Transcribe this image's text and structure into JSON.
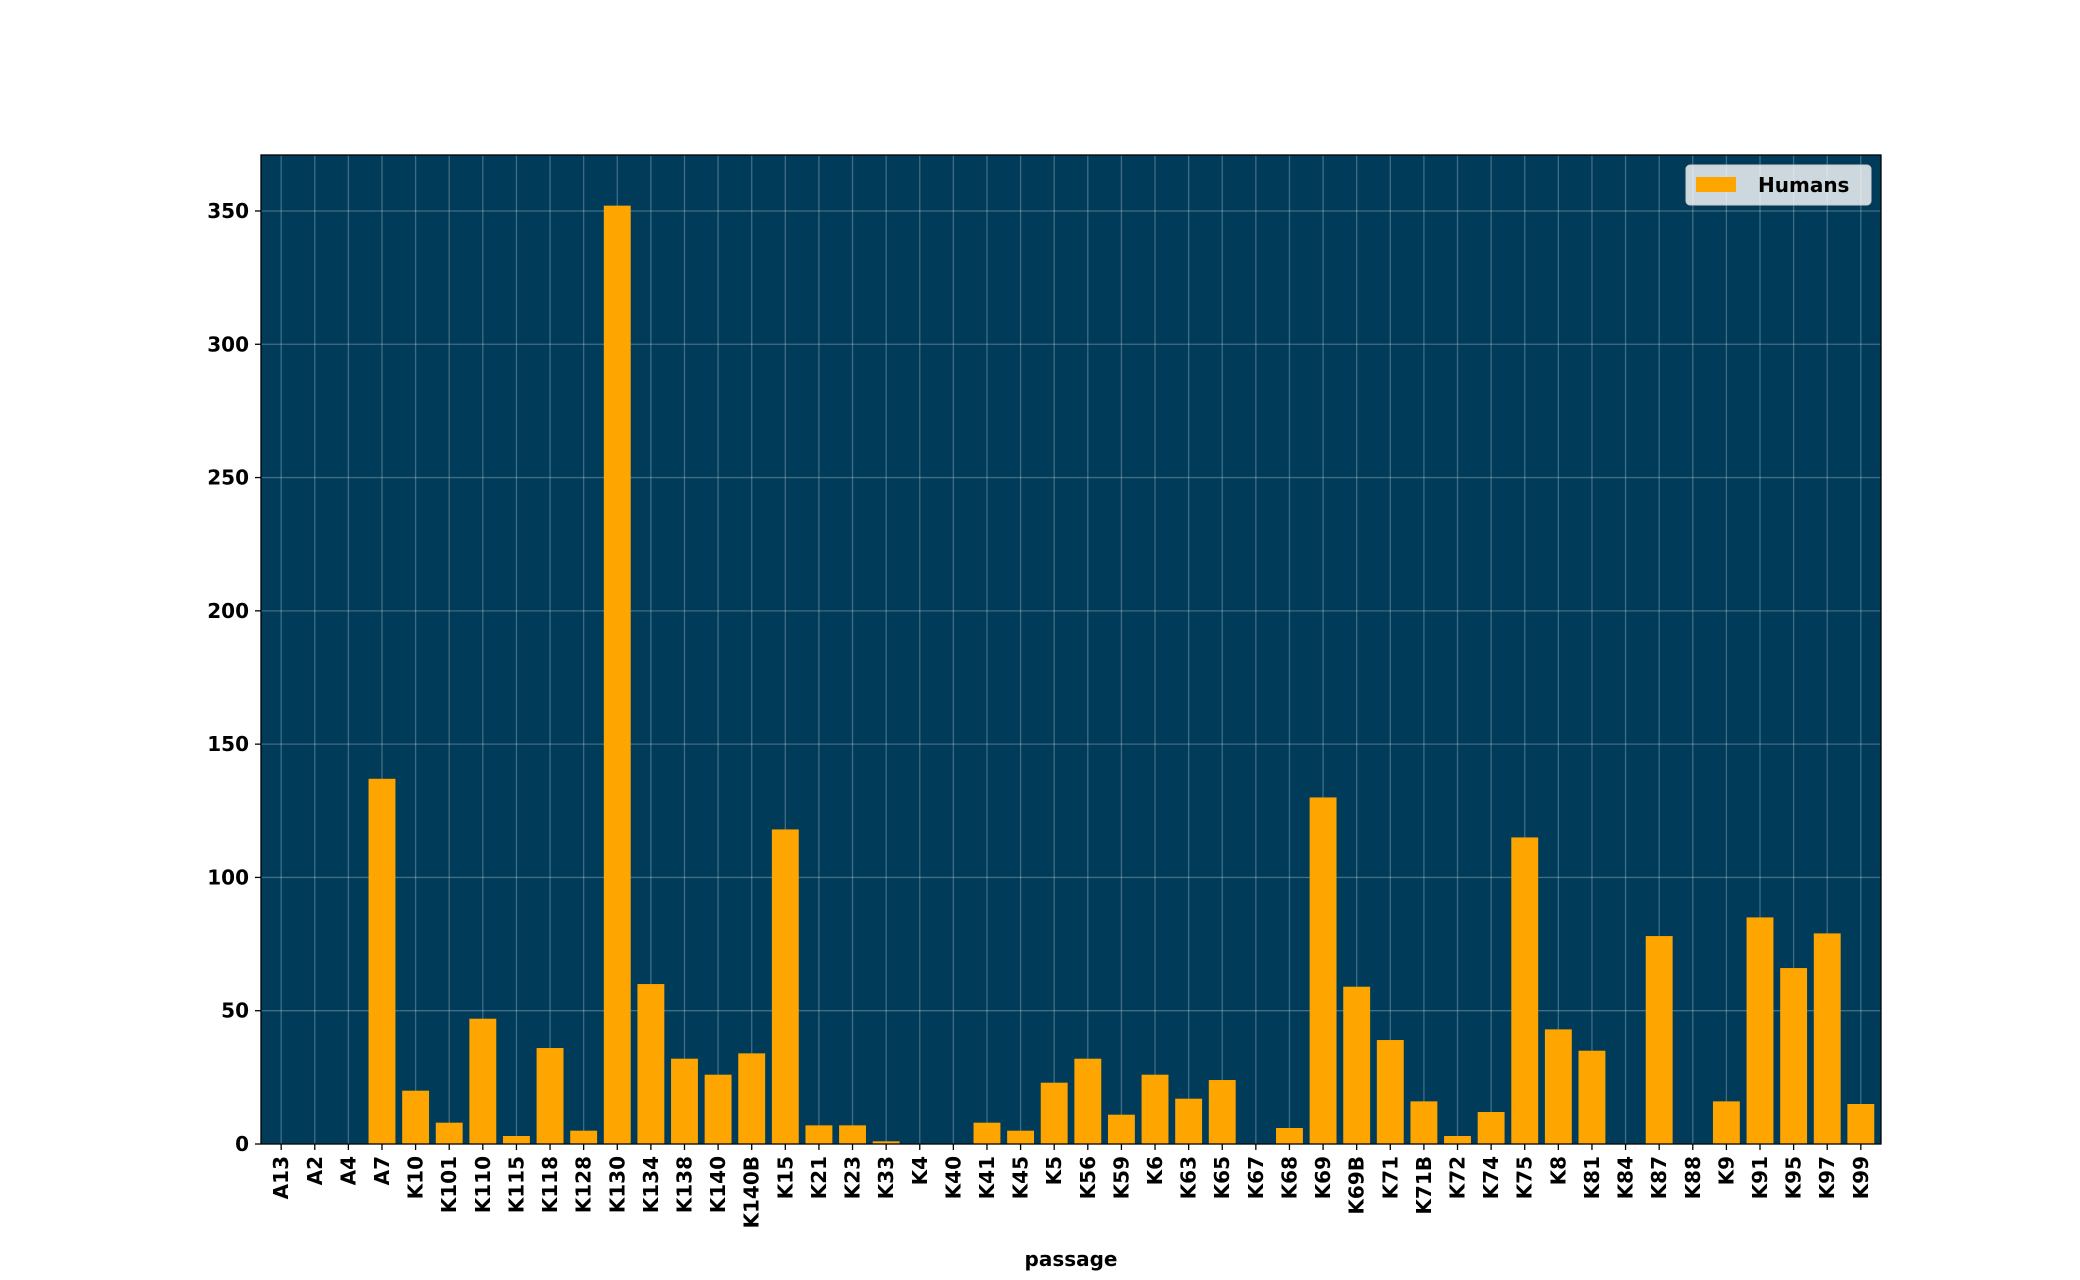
{
  "chart_data": {
    "type": "bar",
    "x_label": "passage",
    "categories": [
      "A13",
      "A2",
      "A4",
      "A7",
      "K10",
      "K101",
      "K110",
      "K115",
      "K118",
      "K128",
      "K130",
      "K134",
      "K138",
      "K140",
      "K140B",
      "K15",
      "K21",
      "K23",
      "K33",
      "K4",
      "K40",
      "K41",
      "K45",
      "K5",
      "K56",
      "K59",
      "K6",
      "K63",
      "K65",
      "K67",
      "K68",
      "K69",
      "K69B",
      "K71",
      "K71B",
      "K72",
      "K74",
      "K75",
      "K8",
      "K81",
      "K84",
      "K87",
      "K88",
      "K9",
      "K91",
      "K95",
      "K97",
      "K99"
    ],
    "series": [
      {
        "name": "Humans",
        "color": "#ffa500",
        "values": [
          0,
          0,
          0,
          137,
          20,
          8,
          47,
          3,
          36,
          5,
          352,
          60,
          32,
          26,
          34,
          118,
          7,
          7,
          1,
          0,
          0,
          8,
          5,
          23,
          32,
          11,
          26,
          17,
          24,
          0,
          6,
          130,
          59,
          39,
          16,
          3,
          12,
          115,
          43,
          35,
          0,
          78,
          0,
          16,
          85,
          66,
          79,
          15
        ]
      }
    ],
    "ylim": [
      0,
      371
    ],
    "yticks": [
      0,
      50,
      100,
      150,
      200,
      250,
      300,
      350
    ],
    "grid": true,
    "legend": "upper right",
    "background": "#003c5a"
  }
}
